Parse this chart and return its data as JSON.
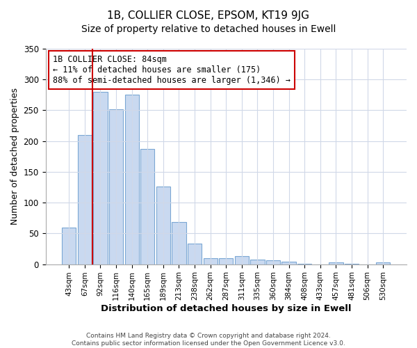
{
  "title": "1B, COLLIER CLOSE, EPSOM, KT19 9JG",
  "subtitle": "Size of property relative to detached houses in Ewell",
  "xlabel": "Distribution of detached houses by size in Ewell",
  "ylabel": "Number of detached properties",
  "bar_labels": [
    "43sqm",
    "67sqm",
    "92sqm",
    "116sqm",
    "140sqm",
    "165sqm",
    "189sqm",
    "213sqm",
    "238sqm",
    "262sqm",
    "287sqm",
    "311sqm",
    "335sqm",
    "360sqm",
    "384sqm",
    "408sqm",
    "433sqm",
    "457sqm",
    "481sqm",
    "506sqm",
    "530sqm"
  ],
  "bar_values": [
    59,
    210,
    280,
    252,
    275,
    187,
    126,
    69,
    34,
    10,
    10,
    13,
    7,
    6,
    4,
    1,
    0,
    3,
    1,
    0,
    3
  ],
  "bar_color": "#c9d9f0",
  "bar_edge_color": "#7ba7d4",
  "vline_color": "#cc0000",
  "annotation_text": "1B COLLIER CLOSE: 84sqm\n← 11% of detached houses are smaller (175)\n88% of semi-detached houses are larger (1,346) →",
  "annotation_box_color": "#ffffff",
  "annotation_box_edge": "#cc0000",
  "ylim": [
    0,
    350
  ],
  "yticks": [
    0,
    50,
    100,
    150,
    200,
    250,
    300,
    350
  ],
  "footer_line1": "Contains HM Land Registry data © Crown copyright and database right 2024.",
  "footer_line2": "Contains public sector information licensed under the Open Government Licence v3.0.",
  "bg_color": "#ffffff",
  "plot_bg_color": "#ffffff",
  "grid_color": "#d0d8e8",
  "title_fontsize": 11,
  "subtitle_fontsize": 10
}
